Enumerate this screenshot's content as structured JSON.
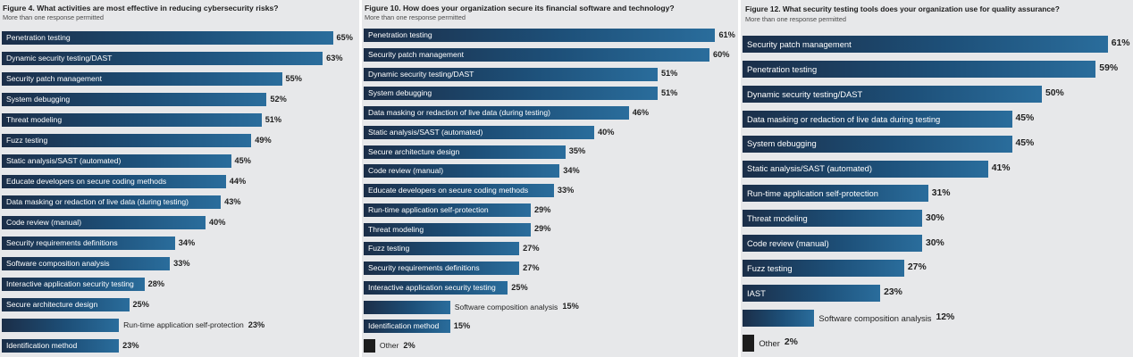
{
  "chart_data": [
    {
      "type": "bar",
      "title": "Figure 4. What activities are most effective in reducing cybersecurity risks?",
      "subtitle": "More than one response permitted",
      "categories": [
        "Penetration testing",
        "Dynamic security testing/DAST",
        "Security patch management",
        "System debugging",
        "Threat modeling",
        "Fuzz testing",
        "Static analysis/SAST (automated)",
        "Educate developers on secure coding methods",
        "Data masking or redaction of live data (during testing)",
        "Code review (manual)",
        "Security requirements definitions",
        "Software composition analysis",
        "Interactive application security testing",
        "Secure architecture design",
        "Run-time application self-protection",
        "Identification method"
      ],
      "values": [
        65,
        63,
        55,
        52,
        51,
        49,
        45,
        44,
        43,
        40,
        34,
        33,
        28,
        25,
        23,
        23
      ],
      "value_labels": [
        "65%",
        "63%",
        "55%",
        "52%",
        "51%",
        "49%",
        "45%",
        "44%",
        "43%",
        "40%",
        "34%",
        "33%",
        "28%",
        "25%",
        "23%",
        "23%"
      ]
    },
    {
      "type": "bar",
      "title": "Figure 10. How does your organization secure its financial software and technology?",
      "subtitle": "More than one response permitted",
      "categories": [
        "Penetration testing",
        "Security patch management",
        "Dynamic security testing/DAST",
        "System debugging",
        "Data masking or redaction of live data (during testing)",
        "Static analysis/SAST (automated)",
        "Secure architecture design",
        "Code review (manual)",
        "Educate developers on secure coding methods",
        "Run-time application self-protection",
        "Threat modeling",
        "Fuzz testing",
        "Security requirements definitions",
        "Interactive application security testing",
        "Software composition analysis",
        "Identification method",
        "Other"
      ],
      "values": [
        61,
        60,
        51,
        51,
        46,
        40,
        35,
        34,
        33,
        29,
        29,
        27,
        27,
        25,
        15,
        15,
        2
      ],
      "value_labels": [
        "61%",
        "60%",
        "51%",
        "51%",
        "46%",
        "40%",
        "35%",
        "34%",
        "33%",
        "29%",
        "29%",
        "27%",
        "27%",
        "25%",
        "15%",
        "15%",
        "2%"
      ]
    },
    {
      "type": "bar",
      "title": "Figure 12. What security testing tools does your organization use for quality assurance?",
      "subtitle": "More than one response permitted",
      "categories": [
        "Security patch management",
        "Penetration testing",
        "Dynamic security testing/DAST",
        "Data masking or redaction of live data during testing",
        "System debugging",
        "Static analysis/SAST (automated)",
        "Run-time application self-protection",
        "Threat modeling",
        "Code review (manual)",
        "Fuzz testing",
        "IAST",
        "Software composition analysis",
        "Other"
      ],
      "values": [
        61,
        59,
        50,
        45,
        45,
        41,
        31,
        30,
        30,
        27,
        23,
        12,
        2
      ],
      "value_labels": [
        "61%",
        "59%",
        "50%",
        "45%",
        "45%",
        "41%",
        "31%",
        "30%",
        "30%",
        "27%",
        "23%",
        "12%",
        "2%"
      ]
    }
  ]
}
